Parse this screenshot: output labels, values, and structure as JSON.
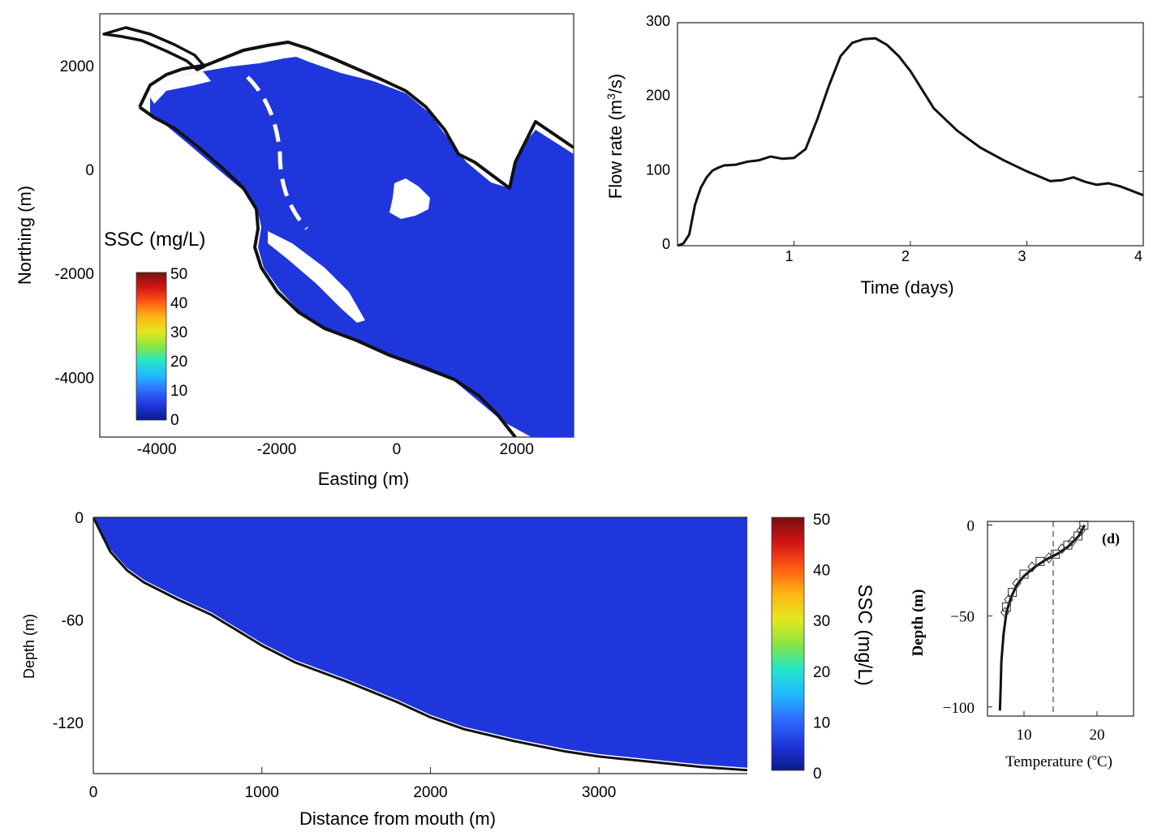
{
  "colors": {
    "water": "#1f36dc",
    "land_outline": "#111111",
    "channel_dash": "#ffffff",
    "colormap": [
      "#0a1a8c",
      "#1f36dc",
      "#2f6bff",
      "#22b8ff",
      "#22e6c8",
      "#8ae640",
      "#e6e61e",
      "#ffb414",
      "#ff5a14",
      "#d21414",
      "#7a1010"
    ]
  },
  "chart_data": [
    {
      "id": "map",
      "type": "heatmap",
      "xlabel": "Easting (m)",
      "ylabel": "Northing (m)",
      "xlim": [
        -4950,
        2950
      ],
      "ylim": [
        -5150,
        3000
      ],
      "xticks": [
        -4000,
        -2000,
        0,
        2000
      ],
      "xtick_labels": [
        "-4000",
        "-2000",
        "0",
        "2000"
      ],
      "yticks": [
        2000,
        0,
        -2000,
        -4000
      ],
      "ytick_labels": [
        "2000",
        "0",
        "-2000",
        "-4000"
      ],
      "colorbar": {
        "title": "SSC (mg/L)",
        "ticks": [
          50,
          40,
          30,
          20,
          10,
          0
        ],
        "tick_labels": [
          "50",
          "40",
          "30",
          "20",
          "10",
          "0"
        ],
        "range": [
          0,
          50
        ]
      },
      "value_everywhere_mg_per_L": 3
    },
    {
      "id": "flow",
      "type": "line",
      "xlabel": "Time (days)",
      "ylabel_main": "Flow rate (m",
      "ylabel_sup": "3",
      "ylabel_end": "/s)",
      "xlim": [
        0,
        4
      ],
      "ylim": [
        0,
        300
      ],
      "xticks": [
        1,
        2,
        3,
        4
      ],
      "xtick_labels": [
        "1",
        "2",
        "3",
        "4"
      ],
      "yticks": [
        0,
        100,
        200,
        300
      ],
      "ytick_labels": [
        "0",
        "100",
        "200",
        "300"
      ],
      "x": [
        0,
        0.05,
        0.1,
        0.15,
        0.2,
        0.25,
        0.3,
        0.35,
        0.4,
        0.5,
        0.6,
        0.7,
        0.8,
        0.9,
        1.0,
        1.1,
        1.2,
        1.3,
        1.4,
        1.5,
        1.6,
        1.7,
        1.8,
        1.9,
        2.0,
        2.2,
        2.4,
        2.6,
        2.8,
        3.0,
        3.2,
        3.3,
        3.4,
        3.5,
        3.6,
        3.7,
        3.8,
        3.9,
        4.0
      ],
      "y": [
        0,
        3,
        15,
        55,
        78,
        92,
        101,
        105,
        108,
        109,
        113,
        115,
        120,
        117,
        118,
        130,
        170,
        215,
        255,
        273,
        278,
        279,
        270,
        255,
        235,
        185,
        155,
        132,
        115,
        100,
        87,
        88,
        92,
        86,
        82,
        84,
        80,
        74,
        68
      ]
    },
    {
      "id": "transect",
      "type": "heatmap",
      "xlabel": "Distance from mouth (m)",
      "ylabel": "Depth (m)",
      "xlim": [
        0,
        3880
      ],
      "ylim": [
        -150,
        0
      ],
      "xticks": [
        0,
        1000,
        2000,
        3000
      ],
      "xtick_labels": [
        "0",
        "1000",
        "2000",
        "3000"
      ],
      "yticks": [
        0,
        -60,
        -120
      ],
      "ytick_labels": [
        "0",
        "-60",
        "-120"
      ],
      "colorbar": {
        "title": "SSC (mg/L)",
        "ticks": [
          50,
          40,
          30,
          20,
          10,
          0
        ],
        "tick_labels": [
          "50",
          "40",
          "30",
          "20",
          "10",
          "0"
        ],
        "range": [
          0,
          50
        ]
      },
      "bottom_x": [
        0,
        100,
        200,
        300,
        500,
        700,
        900,
        1000,
        1200,
        1500,
        1800,
        2000,
        2200,
        2500,
        2800,
        3000,
        3300,
        3600,
        3880
      ],
      "bottom_depth": [
        0,
        -20,
        -31,
        -38,
        -48,
        -57,
        -69,
        -75,
        -85,
        -96,
        -108,
        -117,
        -124,
        -131,
        -137,
        -140,
        -143,
        -146,
        -148
      ]
    },
    {
      "id": "temp",
      "type": "line",
      "panel_label": "(d)",
      "xlabel": "Temperature (",
      "xlabel_sup": "o",
      "xlabel_end": "C)",
      "ylabel": "Depth (m)",
      "xlim": [
        5,
        25
      ],
      "ylim": [
        -105,
        2
      ],
      "xticks": [
        10,
        20
      ],
      "xtick_labels": [
        "10",
        "20"
      ],
      "yticks": [
        0,
        -50,
        -100
      ],
      "ytick_labels": [
        "0",
        "−50",
        "−100"
      ],
      "dashed_x": 14,
      "model_x": [
        18.3,
        17.5,
        16.0,
        14.5,
        13.0,
        11.5,
        10.0,
        9.0,
        8.2,
        7.6,
        7.2,
        6.9,
        6.8,
        6.7
      ],
      "model_y": [
        0,
        -6,
        -12,
        -16,
        -19,
        -23,
        -28,
        -33,
        -40,
        -48,
        -60,
        -75,
        -90,
        -102
      ],
      "obs_x": [
        18.2,
        17.8,
        17.4,
        16.6,
        16.0,
        15.2,
        14.3,
        13.4,
        12.2,
        11.1,
        10.0,
        9.0,
        8.4,
        7.9,
        7.6,
        7.4
      ],
      "obs_y": [
        0,
        -3,
        -6,
        -9,
        -11,
        -13,
        -16,
        -18,
        -20,
        -23,
        -27,
        -32,
        -37,
        -41,
        -45,
        -48
      ]
    }
  ]
}
